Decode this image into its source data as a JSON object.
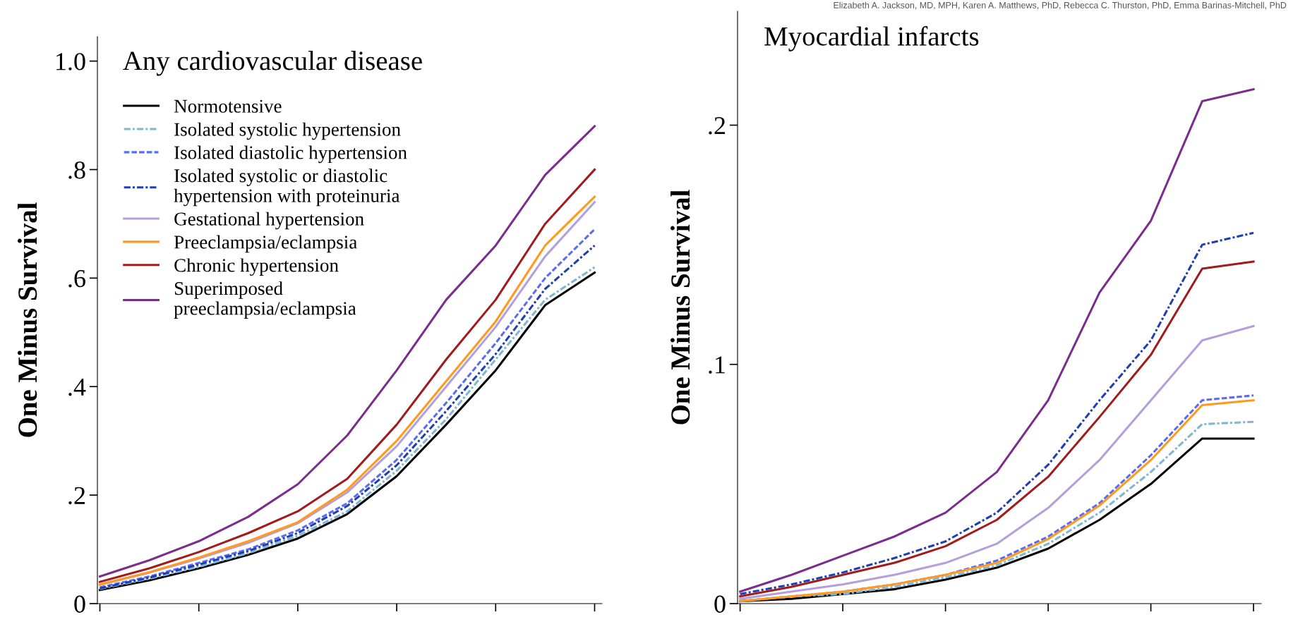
{
  "chart_data": [
    {
      "type": "line",
      "title": "Any cardiovascular disease",
      "ylabel": "One Minus Survival",
      "categories": [
        null,
        null,
        null,
        null,
        null,
        null,
        null,
        null,
        null,
        null,
        null
      ],
      "ylim": [
        0,
        1.045
      ],
      "yticks": [
        0,
        {
          "value": 0.2,
          "label": ".2"
        },
        {
          "value": 0.4,
          "label": ".4"
        },
        {
          "value": 0.6,
          "label": ".6"
        },
        {
          "value": 0.8,
          "label": ".8"
        },
        {
          "value": 1.0,
          "label": "1.0"
        }
      ],
      "tick_labels": "y",
      "grid": false,
      "legend": "top left",
      "series": [
        {
          "name": "Normotensive",
          "color": "#000000",
          "line_style": "solid",
          "values": [
            0.025,
            0.043,
            0.065,
            0.09,
            0.12,
            0.165,
            0.235,
            0.33,
            0.43,
            0.55,
            0.61
          ]
        },
        {
          "name": "Isolated systolic hypertension",
          "color": "#7fb6d6",
          "line_style": "dashdot",
          "values": [
            0.027,
            0.046,
            0.068,
            0.093,
            0.125,
            0.17,
            0.245,
            0.34,
            0.45,
            0.56,
            0.62
          ]
        },
        {
          "name": "Isolated diastolic hypertension",
          "color": "#5a6cf0",
          "line_style": "dashed",
          "values": [
            0.03,
            0.05,
            0.075,
            0.1,
            0.135,
            0.185,
            0.265,
            0.37,
            0.48,
            0.6,
            0.69
          ]
        },
        {
          "name": "Isolated systolic or diastolic\nhypertension with proteinuria",
          "color": "#1f3fb0",
          "line_style": "dashdot",
          "values": [
            0.028,
            0.048,
            0.072,
            0.097,
            0.13,
            0.18,
            0.255,
            0.355,
            0.46,
            0.58,
            0.66
          ]
        },
        {
          "name": "Gestational hypertension",
          "color": "#b49fdc",
          "line_style": "solid",
          "values": [
            0.035,
            0.057,
            0.083,
            0.112,
            0.148,
            0.205,
            0.29,
            0.4,
            0.51,
            0.64,
            0.74
          ]
        },
        {
          "name": "Preeclampsia/eclampsia",
          "color": "#ff9a1f",
          "line_style": "solid",
          "values": [
            0.035,
            0.058,
            0.085,
            0.115,
            0.15,
            0.21,
            0.3,
            0.41,
            0.52,
            0.66,
            0.75
          ]
        },
        {
          "name": "Chronic hypertension",
          "color": "#a01c1c",
          "line_style": "solid",
          "values": [
            0.04,
            0.065,
            0.095,
            0.13,
            0.17,
            0.23,
            0.33,
            0.45,
            0.56,
            0.7,
            0.8
          ]
        },
        {
          "name": "Superimposed\npreeclampsia/eclampsia",
          "color": "#7b2d8e",
          "line_style": "solid",
          "values": [
            0.05,
            0.08,
            0.115,
            0.16,
            0.22,
            0.31,
            0.43,
            0.56,
            0.66,
            0.79,
            0.88
          ]
        }
      ]
    },
    {
      "type": "line",
      "title": "Myocardial infarcts",
      "ylabel": "One Minus Survival",
      "annotations": [
        "Elizabeth A. Jackson, MD, MPH, Karen A. Matthews, PhD, Rebecca C. Thurston, PhD, Emma Barinas-Mitchell, PhD"
      ],
      "categories": [
        null,
        null,
        null,
        null,
        null,
        null,
        null,
        null,
        null,
        null,
        null
      ],
      "ylim": [
        0,
        0.2476
      ],
      "yticks": [
        0,
        {
          "value": 0.1,
          "label": ".1"
        },
        {
          "value": 0.2,
          "label": ".2"
        }
      ],
      "tick_labels": "y",
      "grid": false,
      "series": [
        {
          "color": "#000000",
          "line_style": "solid",
          "values": [
            0.001,
            0.002,
            0.004,
            0.006,
            0.01,
            0.015,
            0.023,
            0.035,
            0.05,
            0.069,
            0.069
          ]
        },
        {
          "color": "#7fb6d6",
          "line_style": "dashdot",
          "values": [
            0.001,
            0.003,
            0.004,
            0.007,
            0.011,
            0.016,
            0.025,
            0.038,
            0.055,
            0.075,
            0.076
          ]
        },
        {
          "color": "#5a6cf0",
          "line_style": "dashed",
          "values": [
            0.001,
            0.003,
            0.005,
            0.008,
            0.012,
            0.018,
            0.028,
            0.042,
            0.062,
            0.085,
            0.087
          ]
        },
        {
          "color": "#1f3fb0",
          "line_style": "dashdot",
          "values": [
            0.004,
            0.008,
            0.013,
            0.019,
            0.026,
            0.038,
            0.058,
            0.085,
            0.11,
            0.15,
            0.155
          ]
        },
        {
          "color": "#b49fdc",
          "line_style": "solid",
          "values": [
            0.002,
            0.005,
            0.008,
            0.012,
            0.017,
            0.025,
            0.04,
            0.06,
            0.085,
            0.11,
            0.116
          ]
        },
        {
          "color": "#ff9a1f",
          "line_style": "solid",
          "values": [
            0.001,
            0.003,
            0.005,
            0.008,
            0.012,
            0.017,
            0.027,
            0.041,
            0.06,
            0.083,
            0.085
          ]
        },
        {
          "color": "#a01c1c",
          "line_style": "solid",
          "values": [
            0.003,
            0.007,
            0.012,
            0.017,
            0.024,
            0.035,
            0.053,
            0.078,
            0.104,
            0.14,
            0.143
          ]
        },
        {
          "color": "#7b2d8e",
          "line_style": "solid",
          "values": [
            0.005,
            0.012,
            0.02,
            0.028,
            0.038,
            0.055,
            0.085,
            0.13,
            0.16,
            0.21,
            0.215
          ]
        }
      ]
    }
  ]
}
